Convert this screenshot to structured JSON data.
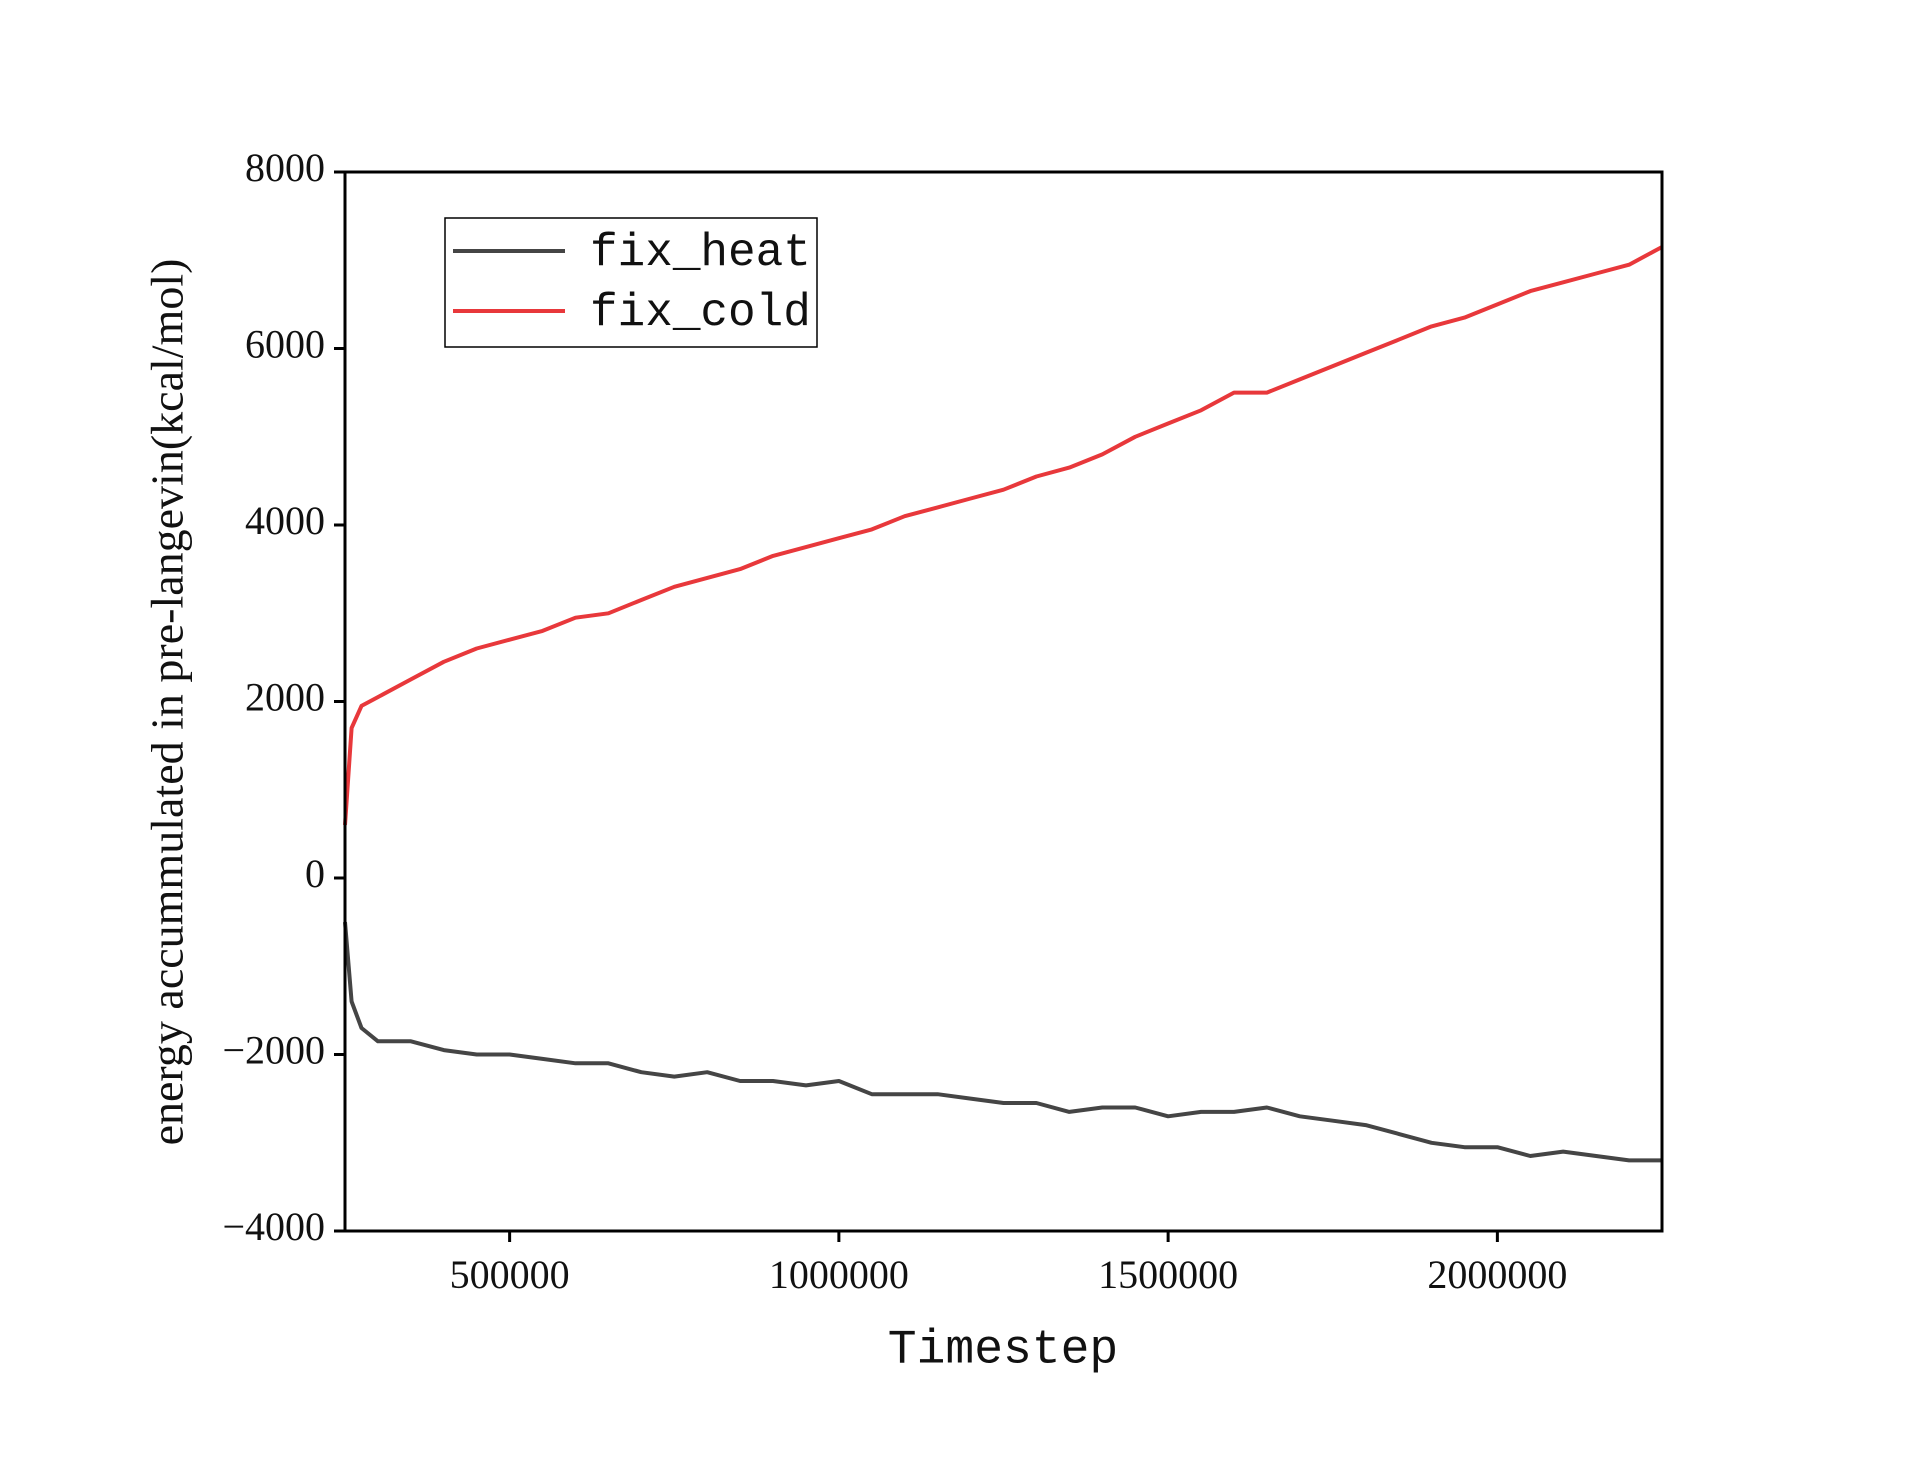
{
  "chart_data": {
    "type": "line",
    "xlabel": "Timestep",
    "ylabel": "energy accummulated in pre-langevin(kcal/mol)",
    "x": [
      250000,
      260000,
      275000,
      300000,
      350000,
      400000,
      450000,
      500000,
      550000,
      600000,
      650000,
      700000,
      750000,
      800000,
      850000,
      900000,
      950000,
      1000000,
      1050000,
      1100000,
      1150000,
      1200000,
      1250000,
      1300000,
      1350000,
      1400000,
      1450000,
      1500000,
      1550000,
      1600000,
      1650000,
      1700000,
      1750000,
      1800000,
      1850000,
      1900000,
      1950000,
      2000000,
      2050000,
      2100000,
      2150000,
      2200000,
      2250000
    ],
    "series": [
      {
        "name": "fix_heat",
        "color": "#454545",
        "values": [
          -500,
          -1400,
          -1700,
          -1850,
          -1850,
          -1950,
          -2000,
          -2000,
          -2050,
          -2100,
          -2100,
          -2200,
          -2250,
          -2200,
          -2300,
          -2300,
          -2350,
          -2300,
          -2450,
          -2450,
          -2450,
          -2500,
          -2550,
          -2550,
          -2650,
          -2600,
          -2600,
          -2700,
          -2650,
          -2650,
          -2600,
          -2700,
          -2750,
          -2800,
          -2900,
          -3000,
          -3050,
          -3050,
          -3150,
          -3100,
          -3150,
          -3200,
          -3200
        ]
      },
      {
        "name": "fix_cold",
        "color": "#e8383b",
        "values": [
          600,
          1700,
          1950,
          2050,
          2250,
          2450,
          2600,
          2700,
          2800,
          2950,
          3000,
          3150,
          3300,
          3400,
          3500,
          3650,
          3750,
          3850,
          3950,
          4100,
          4200,
          4300,
          4400,
          4550,
          4650,
          4800,
          5000,
          5150,
          5300,
          5500,
          5500,
          5650,
          5800,
          5950,
          6100,
          6250,
          6350,
          6500,
          6650,
          6750,
          6850,
          6950,
          7150
        ]
      }
    ],
    "xlim": [
      250000,
      2250000
    ],
    "xticks": [
      500000,
      1000000,
      1500000,
      2000000
    ],
    "ylim": [
      -4000,
      8000
    ],
    "yticks": [
      {
        "value": -4000,
        "label": "−4000"
      },
      {
        "value": -2000,
        "label": "−2000"
      },
      0,
      2000,
      4000,
      6000,
      8000
    ],
    "legend_position": "upper left"
  }
}
